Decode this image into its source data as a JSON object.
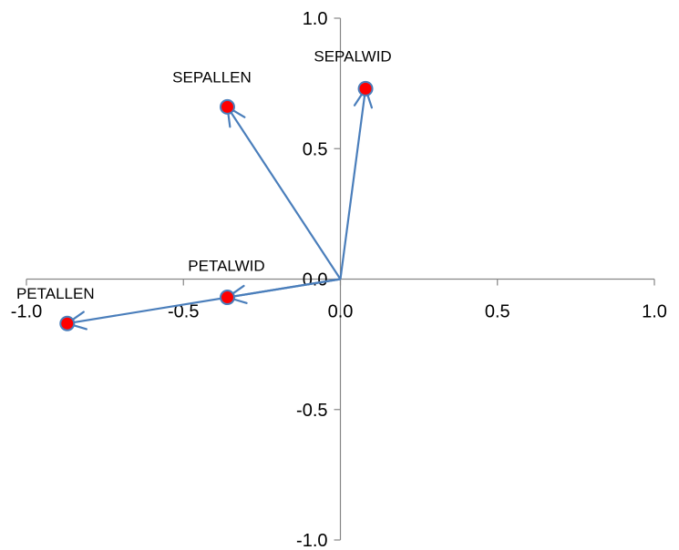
{
  "chart_data": {
    "type": "scatter",
    "title": "",
    "xlabel": "",
    "ylabel": "",
    "xlim": [
      -1.0,
      1.0
    ],
    "ylim": [
      -1.0,
      1.0
    ],
    "x_ticks": [
      -1.0,
      -0.5,
      0.0,
      0.5,
      1.0
    ],
    "y_ticks": [
      1.0,
      0.5,
      0.0,
      -0.5,
      -1.0
    ],
    "x_tick_labels": [
      "-1.0",
      "-0.5",
      "0.0",
      "0.5",
      "1.0"
    ],
    "y_tick_labels": [
      "1.0",
      "0.5",
      "0.0",
      "-0.5",
      "-1.0"
    ],
    "grid": false,
    "legend": "none",
    "vectors_from_origin": true,
    "points": [
      {
        "label": "SEPALLEN",
        "x": -0.36,
        "y": 0.66
      },
      {
        "label": "SEPALWID",
        "x": 0.08,
        "y": 0.73
      },
      {
        "label": "PETALWID",
        "x": -0.36,
        "y": -0.07
      },
      {
        "label": "PETALLEN",
        "x": -0.87,
        "y": -0.17
      }
    ],
    "colors": {
      "arrow": "#4a7ebb",
      "marker_fill": "#ff0000",
      "marker_stroke": "#4a7ebb",
      "axis": "#868686"
    }
  }
}
